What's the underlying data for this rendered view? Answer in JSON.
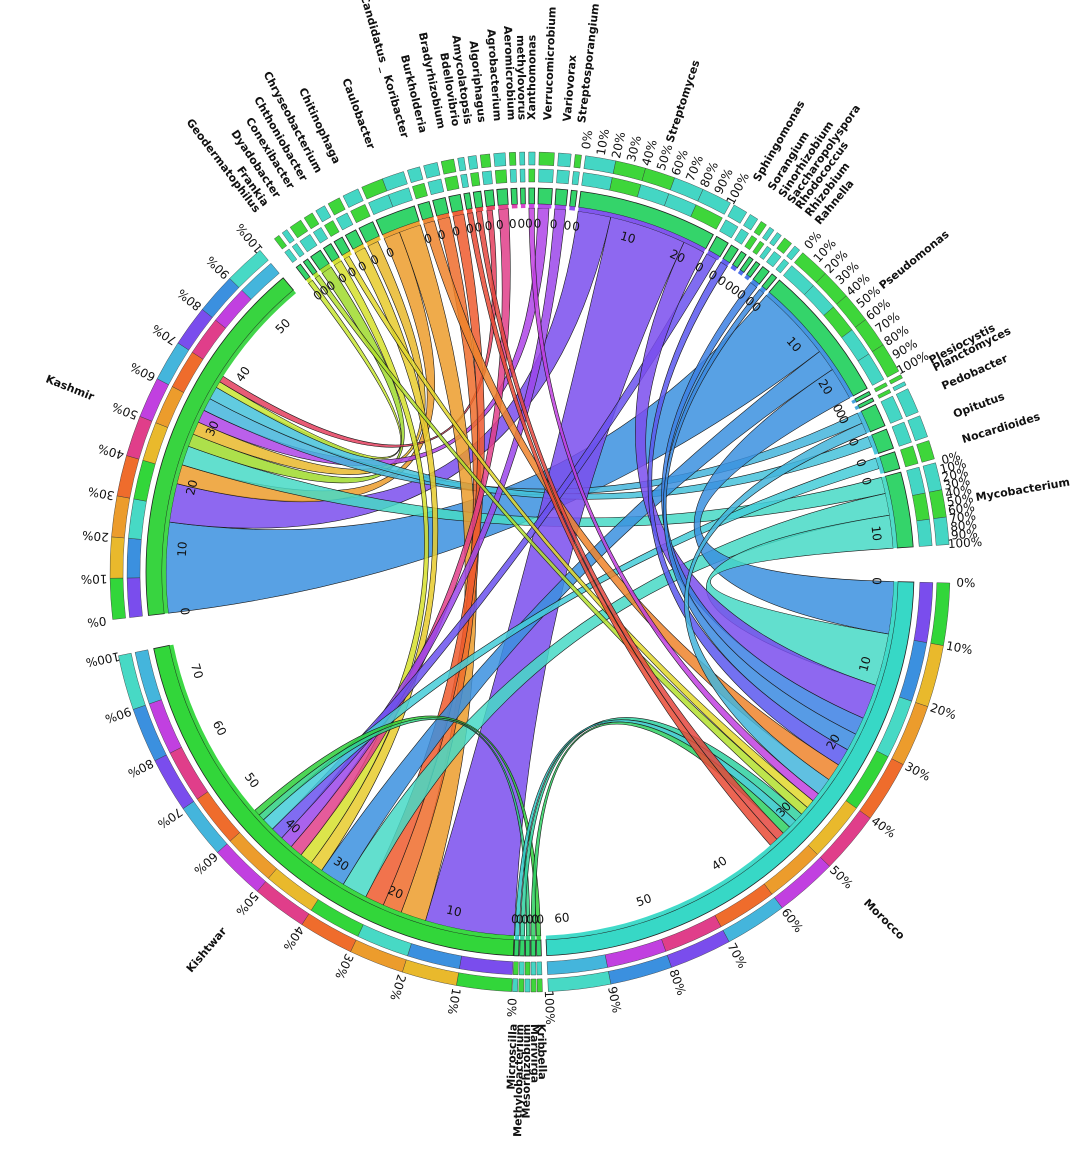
{
  "chart_data": {
    "type": "chord",
    "title": "",
    "grid": false,
    "legend": "none",
    "countries": [
      {
        "name": "Morocco",
        "total": 62,
        "tick_labels": [
          "0",
          "10",
          "20",
          "30",
          "40",
          "50",
          "60"
        ],
        "color": "#37d8c6",
        "start_deg": 91.5,
        "end_deg": 177.5
      },
      {
        "name": "Kishtwar",
        "total": 75,
        "tick_labels": [
          "0",
          "10",
          "20",
          "30",
          "40",
          "50",
          "60",
          "70"
        ],
        "color": "#32d63a",
        "start_deg": 182.5,
        "end_deg": 258.5
      },
      {
        "name": "Kashmir",
        "total": 55,
        "tick_labels": [
          "0",
          "10",
          "20",
          "30",
          "40",
          "50"
        ],
        "color": "#38d440",
        "start_deg": 263.5,
        "end_deg": 320.0
      }
    ],
    "genera": [
      {
        "name": "Kribbella",
        "value": 0.9,
        "color": "#2ecf3a"
      },
      {
        "name": "Marivirga",
        "value": 0.9,
        "color": "#2ed062"
      },
      {
        "name": "Mesorhizobium",
        "value": 1.2,
        "color": "#2ed183"
      },
      {
        "name": "Methylobacterium",
        "value": 0.9,
        "color": "#2ed1a0"
      },
      {
        "name": "Microscilla",
        "value": 0.9,
        "color": "#2ec8c8"
      },
      {
        "name": "Geodermatophilus",
        "value": 0.9,
        "color": "#c8e631"
      },
      {
        "name": "Frankia",
        "value": 0.9,
        "color": "#b3e02e"
      },
      {
        "name": "Dyadobacter",
        "value": 2.0,
        "color": "#9fdb2c"
      },
      {
        "name": "Conexibacter",
        "value": 1.5,
        "color": "#d6e02c"
      },
      {
        "name": "Chthoniobacter",
        "value": 1.6,
        "color": "#e2d82b"
      },
      {
        "name": "Chryseobacterium",
        "value": 2.0,
        "color": "#e8cb2c"
      },
      {
        "name": "Chitinophaga",
        "value": 2.6,
        "color": "#e9b92c"
      },
      {
        "name": "Caulobacter",
        "value": 7.0,
        "color": "#ec9c2c"
      },
      {
        "name": "Candidatus _ Koribacter",
        "value": 2.0,
        "color": "#ee842c"
      },
      {
        "name": "Burkholderia",
        "value": 2.2,
        "color": "#ef6c2c"
      },
      {
        "name": "Bradyrhizobium",
        "value": 2.0,
        "color": "#ee5a2e"
      },
      {
        "name": "Bdellovibrio",
        "value": 1.0,
        "color": "#e94a35"
      },
      {
        "name": "Amycolatopsis",
        "value": 1.3,
        "color": "#e5463e"
      },
      {
        "name": "Algoriphagus",
        "value": 1.5,
        "color": "#e43f5e"
      },
      {
        "name": "Agrobacterium",
        "value": 1.8,
        "color": "#e03e8a"
      },
      {
        "name": "Aeromicrobium",
        "value": 1.0,
        "color": "#dc3cae"
      },
      {
        "name": "methylovorus",
        "value": 0.8,
        "color": "#d43dce"
      },
      {
        "name": "Xanthomonas",
        "value": 1.0,
        "color": "#c140e0"
      },
      {
        "name": "Verrucomicrobium",
        "value": 2.4,
        "color": "#ae44e8"
      },
      {
        "name": "Variovorax",
        "value": 2.0,
        "color": "#9b47ea"
      },
      {
        "name": "Streptosporangium",
        "value": 1.0,
        "color": "#8b4aec"
      },
      {
        "name": "Streptomyces",
        "value": 24,
        "tick_labels": [
          "0",
          "10",
          "20"
        ],
        "color": "#7a4ded"
      },
      {
        "name": "Sphingomonas",
        "value": 2.3,
        "color": "#6a52ee"
      },
      {
        "name": "Sorangium",
        "value": 1.4,
        "color": "#5b58ee"
      },
      {
        "name": "Sinorhizobium",
        "value": 1.0,
        "color": "#4f62ec"
      },
      {
        "name": "Saccharopolyspora",
        "value": 0.8,
        "color": "#476ce9"
      },
      {
        "name": "Rhodococcus",
        "value": 0.8,
        "color": "#4176e6"
      },
      {
        "name": "Rhizobium",
        "value": 1.4,
        "color": "#3c80e4"
      },
      {
        "name": "Rahnella",
        "value": 1.0,
        "color": "#3a89e1"
      },
      {
        "name": "Pseudomonas",
        "value": 24,
        "tick_labels": [
          "0",
          "10",
          "20"
        ],
        "color": "#3b90df"
      },
      {
        "name": "Plesiocystis",
        "value": 0.6,
        "color": "#3c9ddc"
      },
      {
        "name": "Planctomyces",
        "value": 0.6,
        "color": "#3fa8d9"
      },
      {
        "name": "Pedobacter",
        "value": 4.0,
        "color": "#44b5dc"
      },
      {
        "name": "Opitutus",
        "value": 3.5,
        "color": "#45c2db"
      },
      {
        "name": "Nocardioides",
        "value": 3.0,
        "color": "#44ccd8"
      },
      {
        "name": "Mycobacterium",
        "value": 13,
        "tick_labels": [
          "0",
          "10"
        ],
        "color": "#47d9c5"
      }
    ],
    "links": [
      {
        "from": "Kashmir",
        "to": "Pseudomonas",
        "value": 14,
        "color": "#3b90df"
      },
      {
        "from": "Kashmir",
        "to": "Streptomyces",
        "value": 6,
        "color": "#7a4ded"
      },
      {
        "from": "Kashmir",
        "to": "Caulobacter",
        "value": 3,
        "color": "#ec9c2c"
      },
      {
        "from": "Kashmir",
        "to": "Mycobacterium",
        "value": 3,
        "color": "#47d9c5"
      },
      {
        "from": "Kashmir",
        "to": "Dyadobacter",
        "value": 2,
        "color": "#9fdb2c"
      },
      {
        "from": "Kashmir",
        "to": "Chitinophaga",
        "value": 2,
        "color": "#e9b92c"
      },
      {
        "from": "Kashmir",
        "to": "Verrucomicrobium",
        "value": 2,
        "color": "#ae44e8"
      },
      {
        "from": "Kashmir",
        "to": "Pedobacter",
        "value": 2,
        "color": "#44b5dc"
      },
      {
        "from": "Kashmir",
        "to": "Opitutus",
        "value": 2,
        "color": "#45c2db"
      },
      {
        "from": "Kashmir",
        "to": "Geodermatophilus",
        "value": 1,
        "color": "#c8e631"
      },
      {
        "from": "Kashmir",
        "to": "Algoriphagus",
        "value": 1,
        "color": "#e43f5e"
      },
      {
        "from": "Kishtwar",
        "to": "Streptomyces",
        "value": 14,
        "color": "#7a4ded"
      },
      {
        "from": "Kishtwar",
        "to": "Caulobacter",
        "value": 4,
        "color": "#ec9c2c"
      },
      {
        "from": "Kishtwar",
        "to": "Burkholderia",
        "value": 3,
        "color": "#ef6c2c"
      },
      {
        "from": "Kishtwar",
        "to": "Bradyrhizobium",
        "value": 3,
        "color": "#ee5a2e"
      },
      {
        "from": "Kishtwar",
        "to": "Mycobacterium",
        "value": 4,
        "color": "#47d9c5"
      },
      {
        "from": "Kishtwar",
        "to": "Pseudomonas",
        "value": 4,
        "color": "#3b90df"
      },
      {
        "from": "Kishtwar",
        "to": "Chryseobacterium",
        "value": 2,
        "color": "#e8cb2c"
      },
      {
        "from": "Kishtwar",
        "to": "Conexibacter",
        "value": 2,
        "color": "#d6e02c"
      },
      {
        "from": "Kishtwar",
        "to": "Agrobacterium",
        "value": 2,
        "color": "#e03e8a"
      },
      {
        "from": "Kishtwar",
        "to": "Variovorax",
        "value": 2,
        "color": "#9b47ea"
      },
      {
        "from": "Kishtwar",
        "to": "Sphingomonas",
        "value": 2,
        "color": "#6a52ee"
      },
      {
        "from": "Kishtwar",
        "to": "Nocardioides",
        "value": 2,
        "color": "#44ccd8"
      },
      {
        "from": "Kishtwar",
        "to": "Mesorhizobium",
        "value": 1,
        "color": "#2ed183"
      },
      {
        "from": "Kishtwar",
        "to": "Kribbella",
        "value": 1,
        "color": "#2ecf3a"
      },
      {
        "from": "Morocco",
        "to": "Pseudomonas",
        "value": 6,
        "color": "#3b90df"
      },
      {
        "from": "Morocco",
        "to": "Mycobacterium",
        "value": 6,
        "color": "#47d9c5"
      },
      {
        "from": "Morocco",
        "to": "Streptomyces",
        "value": 4,
        "color": "#7a4ded"
      },
      {
        "from": "Morocco",
        "to": "Rhizobium",
        "value": 2,
        "color": "#3c80e4"
      },
      {
        "from": "Morocco",
        "to": "Rahnella",
        "value": 2,
        "color": "#3a89e1"
      },
      {
        "from": "Morocco",
        "to": "Sorangium",
        "value": 2,
        "color": "#5b58ee"
      },
      {
        "from": "Morocco",
        "to": "Candidatus _ Koribacter",
        "value": 2,
        "color": "#ee842c"
      },
      {
        "from": "Morocco",
        "to": "Pedobacter",
        "value": 2,
        "color": "#44b5dc"
      },
      {
        "from": "Morocco",
        "to": "Xanthomonas",
        "value": 1,
        "color": "#c140e0"
      },
      {
        "from": "Morocco",
        "to": "Chthoniobacter",
        "value": 1,
        "color": "#e2d82b"
      },
      {
        "from": "Morocco",
        "to": "Frankia",
        "value": 1,
        "color": "#b3e02e"
      },
      {
        "from": "Morocco",
        "to": "Methylobacterium",
        "value": 1,
        "color": "#2ed1a0"
      },
      {
        "from": "Morocco",
        "to": "Microscilla",
        "value": 1,
        "color": "#2ec8c8"
      },
      {
        "from": "Morocco",
        "to": "Marivirga",
        "value": 1,
        "color": "#2ed062"
      },
      {
        "from": "Morocco",
        "to": "Amycolatopsis",
        "value": 1,
        "color": "#e5463e"
      },
      {
        "from": "Morocco",
        "to": "Bdellovibrio",
        "value": 1,
        "color": "#e94a35"
      }
    ],
    "percent_scale_labels": [
      "0%",
      "10%",
      "20%",
      "30%",
      "40%",
      "50%",
      "60%",
      "70%",
      "80%",
      "90%",
      "100%"
    ]
  }
}
